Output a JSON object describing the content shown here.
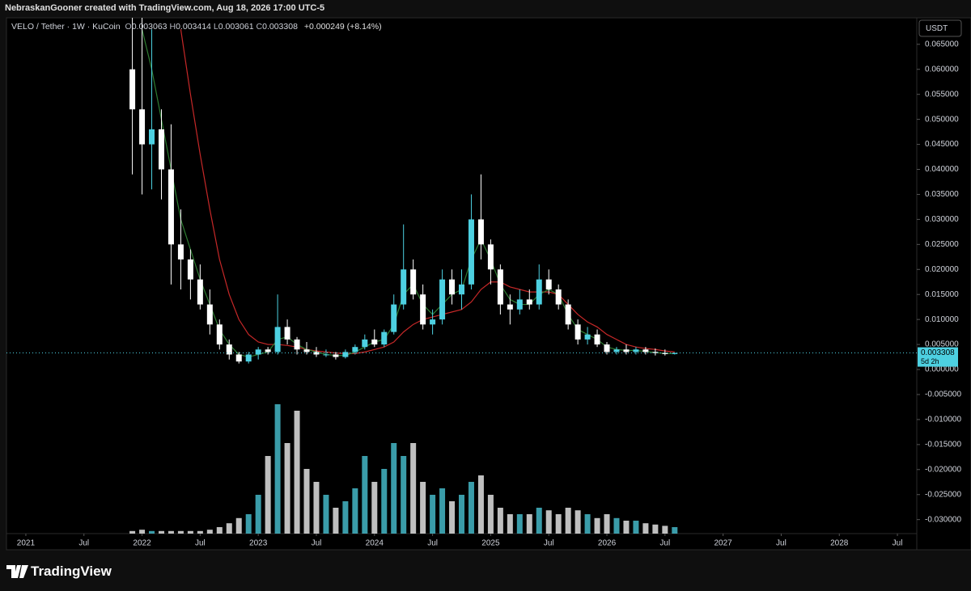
{
  "header": {
    "attribution": "NebraskanGooner created with TradingView.com, Aug 18, 2026 17:00 UTC-5",
    "symbol": "VELO / Tether · 1W · KuCoin",
    "ohlc": [
      {
        "key": "O",
        "value": 0.003063
      },
      {
        "key": "H",
        "value": 0.003414
      },
      {
        "key": "L",
        "value": 0.003061
      },
      {
        "key": "C",
        "value": 0.003308
      }
    ],
    "change": "+0.000249 (+8.14%)"
  },
  "footer": {
    "brand": "TradingView"
  },
  "chart_data": {
    "type": "candlestick",
    "currency": "USDT",
    "up_color": "#4dd0e1",
    "down_color": "#ffffff",
    "x": [
      "2021-12",
      "2022-01",
      "2022-02",
      "2022-03",
      "2022-04",
      "2022-05",
      "2022-06",
      "2022-07",
      "2022-08",
      "2022-09",
      "2022-10",
      "2022-11",
      "2022-12",
      "2023-01",
      "2023-02",
      "2023-03",
      "2023-04",
      "2023-05",
      "2023-06",
      "2023-07",
      "2023-08",
      "2023-09",
      "2023-10",
      "2023-11",
      "2023-12",
      "2024-01",
      "2024-02",
      "2024-03",
      "2024-04",
      "2024-05",
      "2024-06",
      "2024-07",
      "2024-08",
      "2024-09",
      "2024-10",
      "2024-11",
      "2024-12",
      "2025-01",
      "2025-02",
      "2025-03",
      "2025-04",
      "2025-05",
      "2025-06",
      "2025-07",
      "2025-08",
      "2025-09",
      "2025-10",
      "2025-11",
      "2025-12",
      "2026-01",
      "2026-02",
      "2026-03",
      "2026-04",
      "2026-05",
      "2026-06",
      "2026-07",
      "2026-08"
    ],
    "open": [
      0.06,
      0.052,
      0.045,
      0.048,
      0.04,
      0.025,
      0.022,
      0.018,
      0.013,
      0.009,
      0.005,
      0.003,
      0.0016,
      0.003,
      0.004,
      0.0035,
      0.0085,
      0.006,
      0.004,
      0.0035,
      0.003,
      0.003,
      0.0025,
      0.0035,
      0.0045,
      0.006,
      0.005,
      0.0075,
      0.013,
      0.02,
      0.015,
      0.009,
      0.01,
      0.018,
      0.015,
      0.017,
      0.03,
      0.025,
      0.02,
      0.013,
      0.012,
      0.014,
      0.013,
      0.018,
      0.016,
      0.013,
      0.009,
      0.006,
      0.007,
      0.005,
      0.0035,
      0.004,
      0.0035,
      0.004,
      0.0035,
      0.0033,
      0.0031
    ],
    "high": [
      0.0703,
      0.0703,
      0.068,
      0.052,
      0.049,
      0.032,
      0.024,
      0.021,
      0.016,
      0.01,
      0.006,
      0.0035,
      0.0035,
      0.0045,
      0.0045,
      0.015,
      0.01,
      0.0065,
      0.0055,
      0.0045,
      0.004,
      0.0035,
      0.004,
      0.005,
      0.007,
      0.008,
      0.008,
      0.015,
      0.029,
      0.022,
      0.017,
      0.012,
      0.02,
      0.02,
      0.02,
      0.035,
      0.039,
      0.026,
      0.021,
      0.015,
      0.016,
      0.016,
      0.021,
      0.02,
      0.017,
      0.014,
      0.01,
      0.0085,
      0.008,
      0.0055,
      0.0045,
      0.005,
      0.0045,
      0.0045,
      0.0042,
      0.004,
      0.0034
    ],
    "low": [
      0.039,
      0.035,
      0.036,
      0.034,
      0.017,
      0.016,
      0.014,
      0.012,
      0.007,
      0.004,
      0.002,
      0.0012,
      0.0012,
      0.002,
      0.003,
      0.003,
      0.005,
      0.003,
      0.003,
      0.0025,
      0.0025,
      0.002,
      0.0022,
      0.003,
      0.004,
      0.0045,
      0.0045,
      0.007,
      0.012,
      0.014,
      0.008,
      0.007,
      0.009,
      0.013,
      0.012,
      0.016,
      0.022,
      0.017,
      0.011,
      0.009,
      0.011,
      0.012,
      0.012,
      0.015,
      0.012,
      0.008,
      0.005,
      0.005,
      0.0045,
      0.003,
      0.003,
      0.003,
      0.003,
      0.003,
      0.0028,
      0.0028,
      0.003
    ],
    "close": [
      0.052,
      0.045,
      0.048,
      0.04,
      0.025,
      0.022,
      0.018,
      0.013,
      0.009,
      0.005,
      0.003,
      0.0016,
      0.003,
      0.004,
      0.0035,
      0.0085,
      0.006,
      0.004,
      0.0035,
      0.003,
      0.003,
      0.0025,
      0.0035,
      0.0045,
      0.006,
      0.005,
      0.0075,
      0.013,
      0.02,
      0.015,
      0.009,
      0.01,
      0.018,
      0.015,
      0.017,
      0.03,
      0.025,
      0.02,
      0.013,
      0.012,
      0.014,
      0.013,
      0.018,
      0.016,
      0.013,
      0.009,
      0.006,
      0.007,
      0.005,
      0.0035,
      0.004,
      0.0035,
      0.004,
      0.0035,
      0.0033,
      0.0031,
      0.0033
    ],
    "volume": [
      2,
      3,
      2,
      2,
      2,
      2,
      2,
      2,
      3,
      5,
      8,
      12,
      15,
      30,
      60,
      100,
      70,
      95,
      50,
      40,
      30,
      20,
      25,
      35,
      60,
      40,
      50,
      70,
      60,
      70,
      40,
      30,
      35,
      25,
      30,
      40,
      45,
      30,
      20,
      15,
      15,
      15,
      20,
      18,
      15,
      20,
      18,
      15,
      12,
      15,
      12,
      10,
      10,
      8,
      7,
      6,
      5
    ],
    "moving_averages": [
      {
        "color": "#c62828",
        "values": [
          null,
          null,
          null,
          null,
          null,
          0.068,
          0.055,
          0.043,
          0.032,
          0.022,
          0.015,
          0.01,
          0.007,
          0.0055,
          0.005,
          0.005,
          0.0048,
          0.0045,
          0.004,
          0.0037,
          0.0035,
          0.0033,
          0.0032,
          0.0032,
          0.0035,
          0.004,
          0.0045,
          0.0055,
          0.0075,
          0.009,
          0.01,
          0.0105,
          0.011,
          0.0115,
          0.012,
          0.0135,
          0.016,
          0.0175,
          0.0175,
          0.0165,
          0.016,
          0.0155,
          0.0155,
          0.0155,
          0.015,
          0.013,
          0.011,
          0.0095,
          0.0085,
          0.007,
          0.006,
          0.005,
          0.0045,
          0.0042,
          0.004,
          0.0037,
          0.0035
        ]
      },
      {
        "color": "#2e7d32",
        "values": [
          null,
          0.068,
          0.06,
          0.05,
          0.04,
          0.03,
          0.024,
          0.018,
          0.013,
          0.008,
          0.005,
          0.003,
          0.0025,
          0.003,
          0.0035,
          0.006,
          0.0065,
          0.005,
          0.004,
          0.0035,
          0.003,
          0.0028,
          0.0028,
          0.0035,
          0.0045,
          0.0055,
          0.006,
          0.009,
          0.015,
          0.017,
          0.013,
          0.011,
          0.013,
          0.015,
          0.016,
          0.022,
          0.026,
          0.022,
          0.017,
          0.014,
          0.013,
          0.013,
          0.015,
          0.016,
          0.015,
          0.011,
          0.008,
          0.007,
          0.006,
          0.0045,
          0.004,
          0.0038,
          0.0038,
          0.0036,
          0.0034,
          0.0032,
          0.0032
        ]
      }
    ],
    "last_price": 0.003308,
    "countdown": "5d 2h",
    "ylim": [
      -0.0328,
      0.0703
    ],
    "yticks": [
      {
        "value": 0.065,
        "label": "0.065000"
      },
      {
        "value": 0.06,
        "label": "0.060000"
      },
      {
        "value": 0.055,
        "label": "0.055000"
      },
      {
        "value": 0.05,
        "label": "0.050000"
      },
      {
        "value": 0.045,
        "label": "0.045000"
      },
      {
        "value": 0.04,
        "label": "0.040000"
      },
      {
        "value": 0.035,
        "label": "0.035000"
      },
      {
        "value": 0.03,
        "label": "0.030000"
      },
      {
        "value": 0.025,
        "label": "0.025000"
      },
      {
        "value": 0.02,
        "label": "0.020000"
      },
      {
        "value": 0.015,
        "label": "0.015000"
      },
      {
        "value": 0.01,
        "label": "0.010000"
      },
      {
        "value": 0.005,
        "label": "0.005000"
      },
      {
        "value": 0,
        "label": "0.000000"
      },
      {
        "value": -0.005,
        "label": "-0.005000"
      },
      {
        "value": -0.01,
        "label": "-0.010000"
      },
      {
        "value": -0.015,
        "label": "-0.015000"
      },
      {
        "value": -0.02,
        "label": "-0.020000"
      },
      {
        "value": -0.025,
        "label": "-0.025000"
      },
      {
        "value": -0.03,
        "label": "-0.030000"
      }
    ],
    "xlim": [
      "2020-11",
      "2028-09"
    ],
    "xticks": [
      {
        "value": "2021-01",
        "label": "2021"
      },
      {
        "value": "2021-07",
        "label": "Jul"
      },
      {
        "value": "2022-01",
        "label": "2022"
      },
      {
        "value": "2022-07",
        "label": "Jul"
      },
      {
        "value": "2023-01",
        "label": "2023"
      },
      {
        "value": "2023-07",
        "label": "Jul"
      },
      {
        "value": "2024-01",
        "label": "2024"
      },
      {
        "value": "2024-07",
        "label": "Jul"
      },
      {
        "value": "2025-01",
        "label": "2025"
      },
      {
        "value": "2025-07",
        "label": "Jul"
      },
      {
        "value": "2026-01",
        "label": "2026"
      },
      {
        "value": "2026-07",
        "label": "Jul"
      },
      {
        "value": "2027-01",
        "label": "2027"
      },
      {
        "value": "2027-07",
        "label": "Jul"
      },
      {
        "value": "2028-01",
        "label": "2028"
      },
      {
        "value": "2028-07",
        "label": "Jul"
      }
    ]
  }
}
